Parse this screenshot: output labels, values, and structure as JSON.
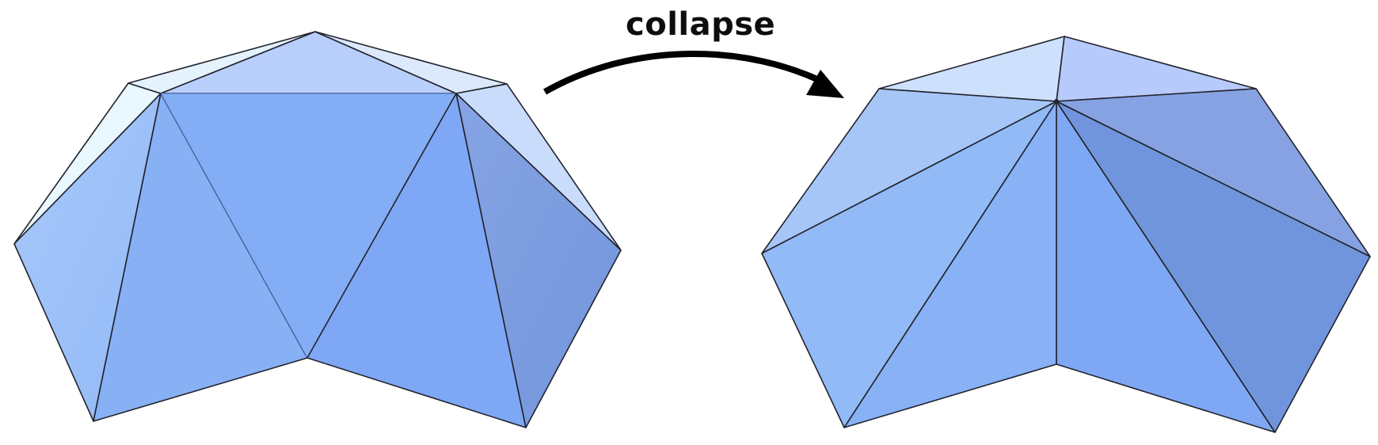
{
  "caption": {
    "text": "collapse"
  },
  "colors": {
    "edge": "#22232c",
    "arrow": "#000000",
    "mesh_base": "#7ea8f5"
  }
}
